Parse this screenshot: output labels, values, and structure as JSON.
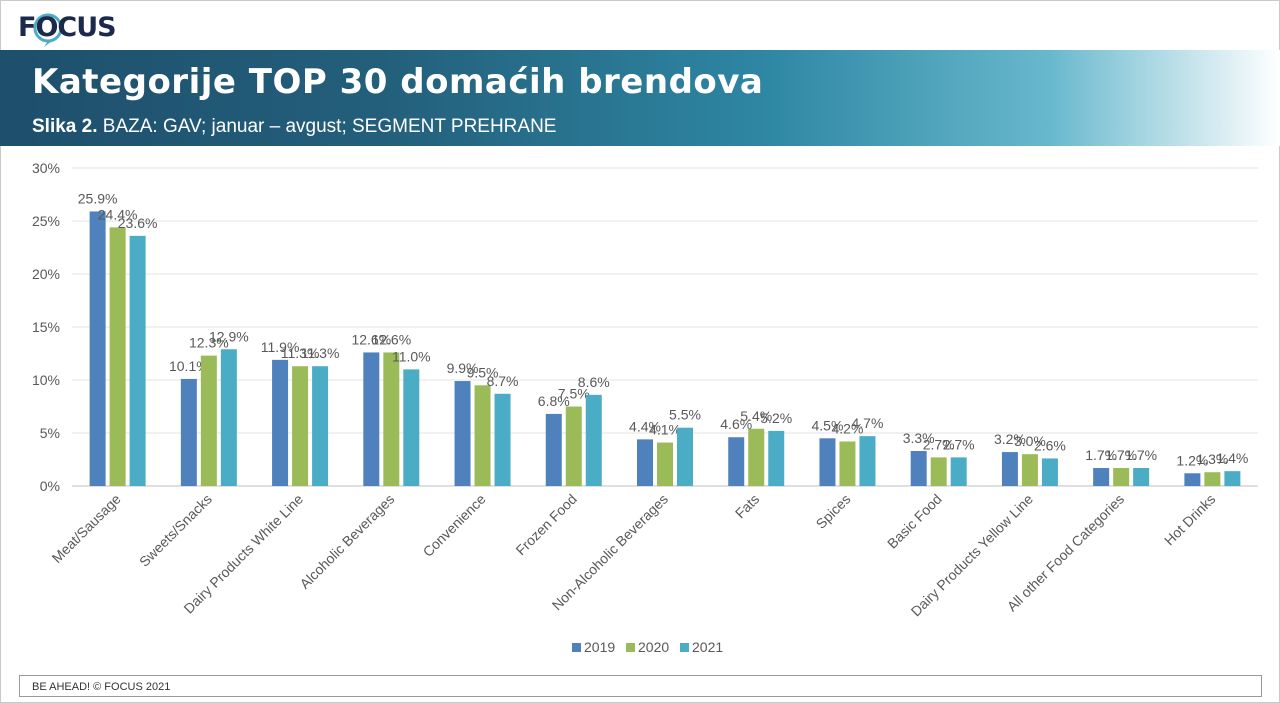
{
  "header": {
    "logo": "FOCUS",
    "title": "Kategorije TOP 30 domaćih brendova",
    "subtitle_prefix": "Slika 2.",
    "subtitle_rest": " BAZA: GAV; januar – avgust; SEGMENT PREHRANE"
  },
  "footer": {
    "text": "BE AHEAD! © FOCUS 2021"
  },
  "colors": {
    "2019": "#4f81bd",
    "2020": "#9bbb59",
    "2021": "#4bacc6"
  },
  "chart_data": {
    "type": "bar",
    "categories": [
      "Meat/Sausage",
      "Sweets/Snacks",
      "Dairy Products White Line",
      "Alcoholic Beverages",
      "Convenience",
      "Frozen Food",
      "Non-Alcoholic Beverages",
      "Fats",
      "Spices",
      "Basic Food",
      "Dairy Products Yellow Line",
      "All other Food Categories",
      "Hot Drinks"
    ],
    "series": [
      {
        "name": "2019",
        "values": [
          25.9,
          10.1,
          11.9,
          12.6,
          9.9,
          6.8,
          4.4,
          4.6,
          4.5,
          3.3,
          3.2,
          1.7,
          1.2
        ],
        "labels": [
          "25.9%",
          "10.1%",
          "11.9%",
          "12.6%",
          "9.9%",
          "6.8%",
          "4.4%",
          "4.6%",
          "4.5%",
          "3.3%",
          "3.2%",
          "1.7%",
          "1.2%"
        ]
      },
      {
        "name": "2020",
        "values": [
          24.4,
          12.3,
          11.3,
          12.6,
          9.5,
          7.5,
          4.1,
          5.4,
          4.2,
          2.7,
          3.0,
          1.7,
          1.3
        ],
        "labels": [
          "24.4%",
          "12.3%",
          "11.3%",
          "12.6%",
          "9.5%",
          "7.5%",
          "4.1%",
          "5.4%",
          "4.2%",
          "2.7%",
          "3.0%",
          "1.7%",
          "1.3%"
        ]
      },
      {
        "name": "2021",
        "values": [
          23.6,
          12.9,
          11.3,
          11.0,
          8.7,
          8.6,
          5.5,
          5.2,
          4.7,
          2.7,
          2.6,
          1.7,
          1.4
        ],
        "labels": [
          "23.6%",
          "12.9%",
          "11.3%",
          "11.0%",
          "8.7%",
          "8.6%",
          "5.5%",
          "5.2%",
          "4.7%",
          "2.7%",
          "2.6%",
          "1.7%",
          "1.4%"
        ]
      }
    ],
    "yticks": [
      "0%",
      "5%",
      "10%",
      "15%",
      "20%",
      "25%",
      "30%"
    ],
    "ylim": [
      0,
      30
    ],
    "grid": true,
    "legend": "bottom"
  }
}
